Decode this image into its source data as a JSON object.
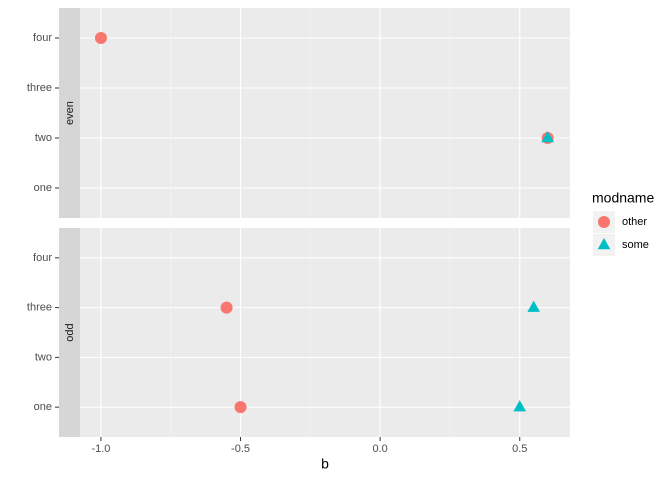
{
  "chart_data": {
    "type": "scatter",
    "x_label": "b",
    "legend_title": "modname",
    "categories": [
      "one",
      "two",
      "three",
      "four"
    ],
    "facets": [
      "even",
      "odd"
    ],
    "xlim": [
      -1.075,
      0.68
    ],
    "xticks": [
      {
        "value": -1.0,
        "label": "-1.0"
      },
      {
        "value": -0.5,
        "label": "-0.5"
      },
      {
        "value": 0,
        "label": "0.0"
      },
      {
        "value": 0.5,
        "label": "0.5"
      }
    ],
    "grid": true,
    "legend_position": "right",
    "series": [
      {
        "name": "other",
        "color": "#F8766D",
        "shape": "circle",
        "x": [
          -1.0,
          0.6,
          -0.55,
          -0.5
        ],
        "y": [
          "four",
          "two",
          "three",
          "one"
        ],
        "facet": [
          "even",
          "even",
          "odd",
          "odd"
        ]
      },
      {
        "name": "some",
        "color": "#00BFC4",
        "shape": "triangle",
        "x": [
          0.6,
          0.55,
          0.5
        ],
        "y": [
          "two",
          "three",
          "one"
        ],
        "facet": [
          "even",
          "odd",
          "odd"
        ]
      }
    ]
  }
}
